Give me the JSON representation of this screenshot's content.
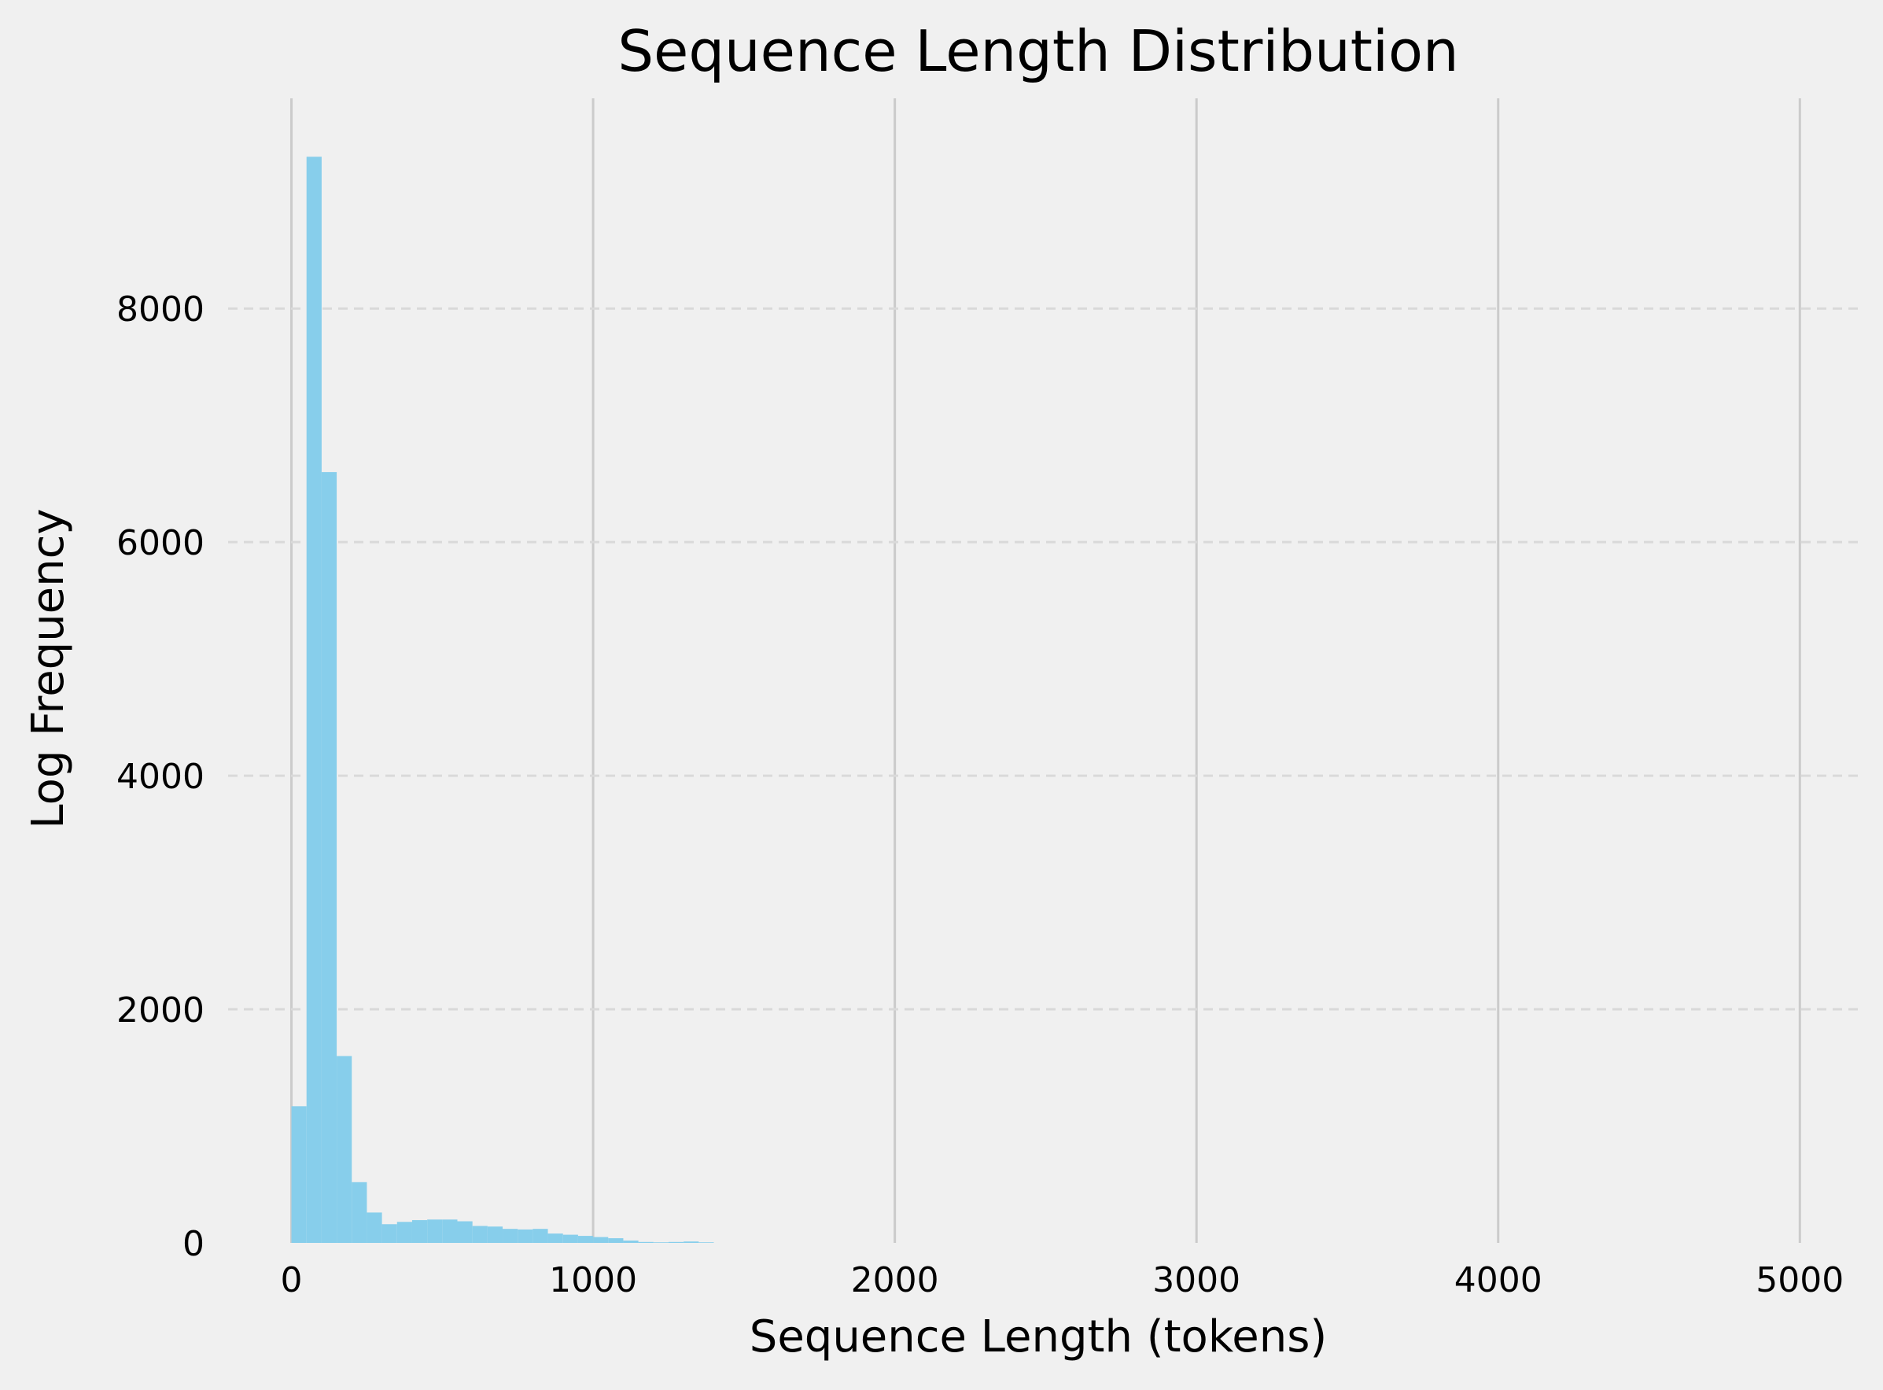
{
  "chart_data": {
    "type": "bar",
    "title": "Sequence Length Distribution",
    "xlabel": "Sequence Length (tokens)",
    "ylabel": "Log Frequency",
    "xlim": [
      -210,
      5200
    ],
    "ylim": [
      0,
      9800
    ],
    "xticks": [
      0,
      1000,
      2000,
      3000,
      4000,
      5000
    ],
    "yticks": [
      0,
      2000,
      4000,
      6000,
      8000
    ],
    "grid": {
      "x": "solid",
      "y": "dashed"
    },
    "bin_width": 50,
    "bins": [
      {
        "x0": 0,
        "x1": 50,
        "value": 1170
      },
      {
        "x0": 50,
        "x1": 100,
        "value": 9300
      },
      {
        "x0": 100,
        "x1": 150,
        "value": 6600
      },
      {
        "x0": 150,
        "x1": 200,
        "value": 1600
      },
      {
        "x0": 200,
        "x1": 250,
        "value": 520
      },
      {
        "x0": 250,
        "x1": 300,
        "value": 260
      },
      {
        "x0": 300,
        "x1": 350,
        "value": 160
      },
      {
        "x0": 350,
        "x1": 400,
        "value": 180
      },
      {
        "x0": 400,
        "x1": 450,
        "value": 195
      },
      {
        "x0": 450,
        "x1": 500,
        "value": 200
      },
      {
        "x0": 500,
        "x1": 550,
        "value": 200
      },
      {
        "x0": 550,
        "x1": 600,
        "value": 185
      },
      {
        "x0": 600,
        "x1": 650,
        "value": 145
      },
      {
        "x0": 650,
        "x1": 700,
        "value": 140
      },
      {
        "x0": 700,
        "x1": 750,
        "value": 120
      },
      {
        "x0": 750,
        "x1": 800,
        "value": 115
      },
      {
        "x0": 800,
        "x1": 850,
        "value": 120
      },
      {
        "x0": 850,
        "x1": 900,
        "value": 80
      },
      {
        "x0": 900,
        "x1": 950,
        "value": 70
      },
      {
        "x0": 950,
        "x1": 1000,
        "value": 60
      },
      {
        "x0": 1000,
        "x1": 1050,
        "value": 50
      },
      {
        "x0": 1050,
        "x1": 1100,
        "value": 40
      },
      {
        "x0": 1100,
        "x1": 1150,
        "value": 20
      },
      {
        "x0": 1150,
        "x1": 1200,
        "value": 8
      },
      {
        "x0": 1200,
        "x1": 1250,
        "value": 5
      },
      {
        "x0": 1250,
        "x1": 1300,
        "value": 8
      },
      {
        "x0": 1300,
        "x1": 1350,
        "value": 12
      },
      {
        "x0": 1350,
        "x1": 1400,
        "value": 5
      }
    ],
    "bar_color": "#87ceeb",
    "background_color": "#f0f0f0",
    "grid_color": "#cbcbcb"
  }
}
